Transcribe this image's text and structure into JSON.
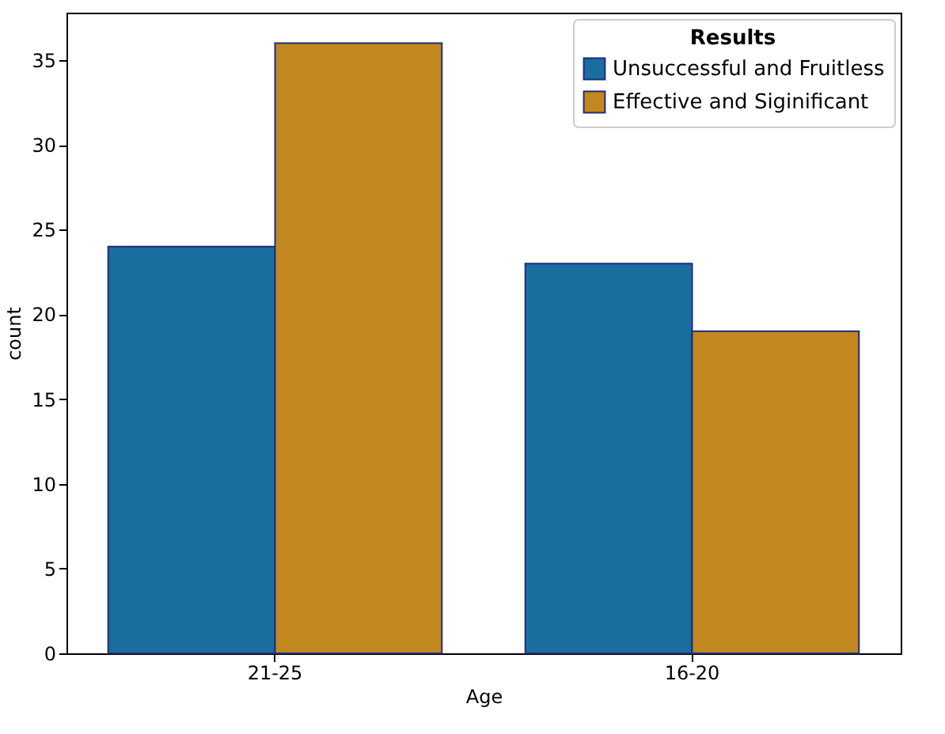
{
  "chart_data": {
    "type": "bar",
    "xlabel": "Age",
    "ylabel": "count",
    "legend_title": "Results",
    "categories": [
      "21-25",
      "16-20"
    ],
    "series": [
      {
        "name": "Unsuccessful and Fruitless",
        "color": "#1a6e9f",
        "values": [
          24,
          23
        ]
      },
      {
        "name": "Effective and Siginificant",
        "color": "#c2871f",
        "values": [
          36,
          19
        ]
      }
    ],
    "ylim": [
      0,
      37.8
    ],
    "yticks": [
      0,
      5,
      10,
      15,
      20,
      25,
      30,
      35
    ],
    "grid": false,
    "legend": "top right"
  }
}
